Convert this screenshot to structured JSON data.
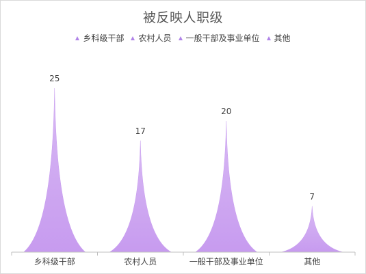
{
  "chart_data": {
    "type": "bar",
    "title": "被反映人职级",
    "categories": [
      "乡科级干部",
      "农村人员",
      "一般干部及事业单位",
      "其他"
    ],
    "values": [
      25,
      17,
      20,
      7
    ],
    "ylim": [
      0,
      25
    ],
    "legend": "top",
    "grid": false,
    "color": "#c79bef"
  }
}
